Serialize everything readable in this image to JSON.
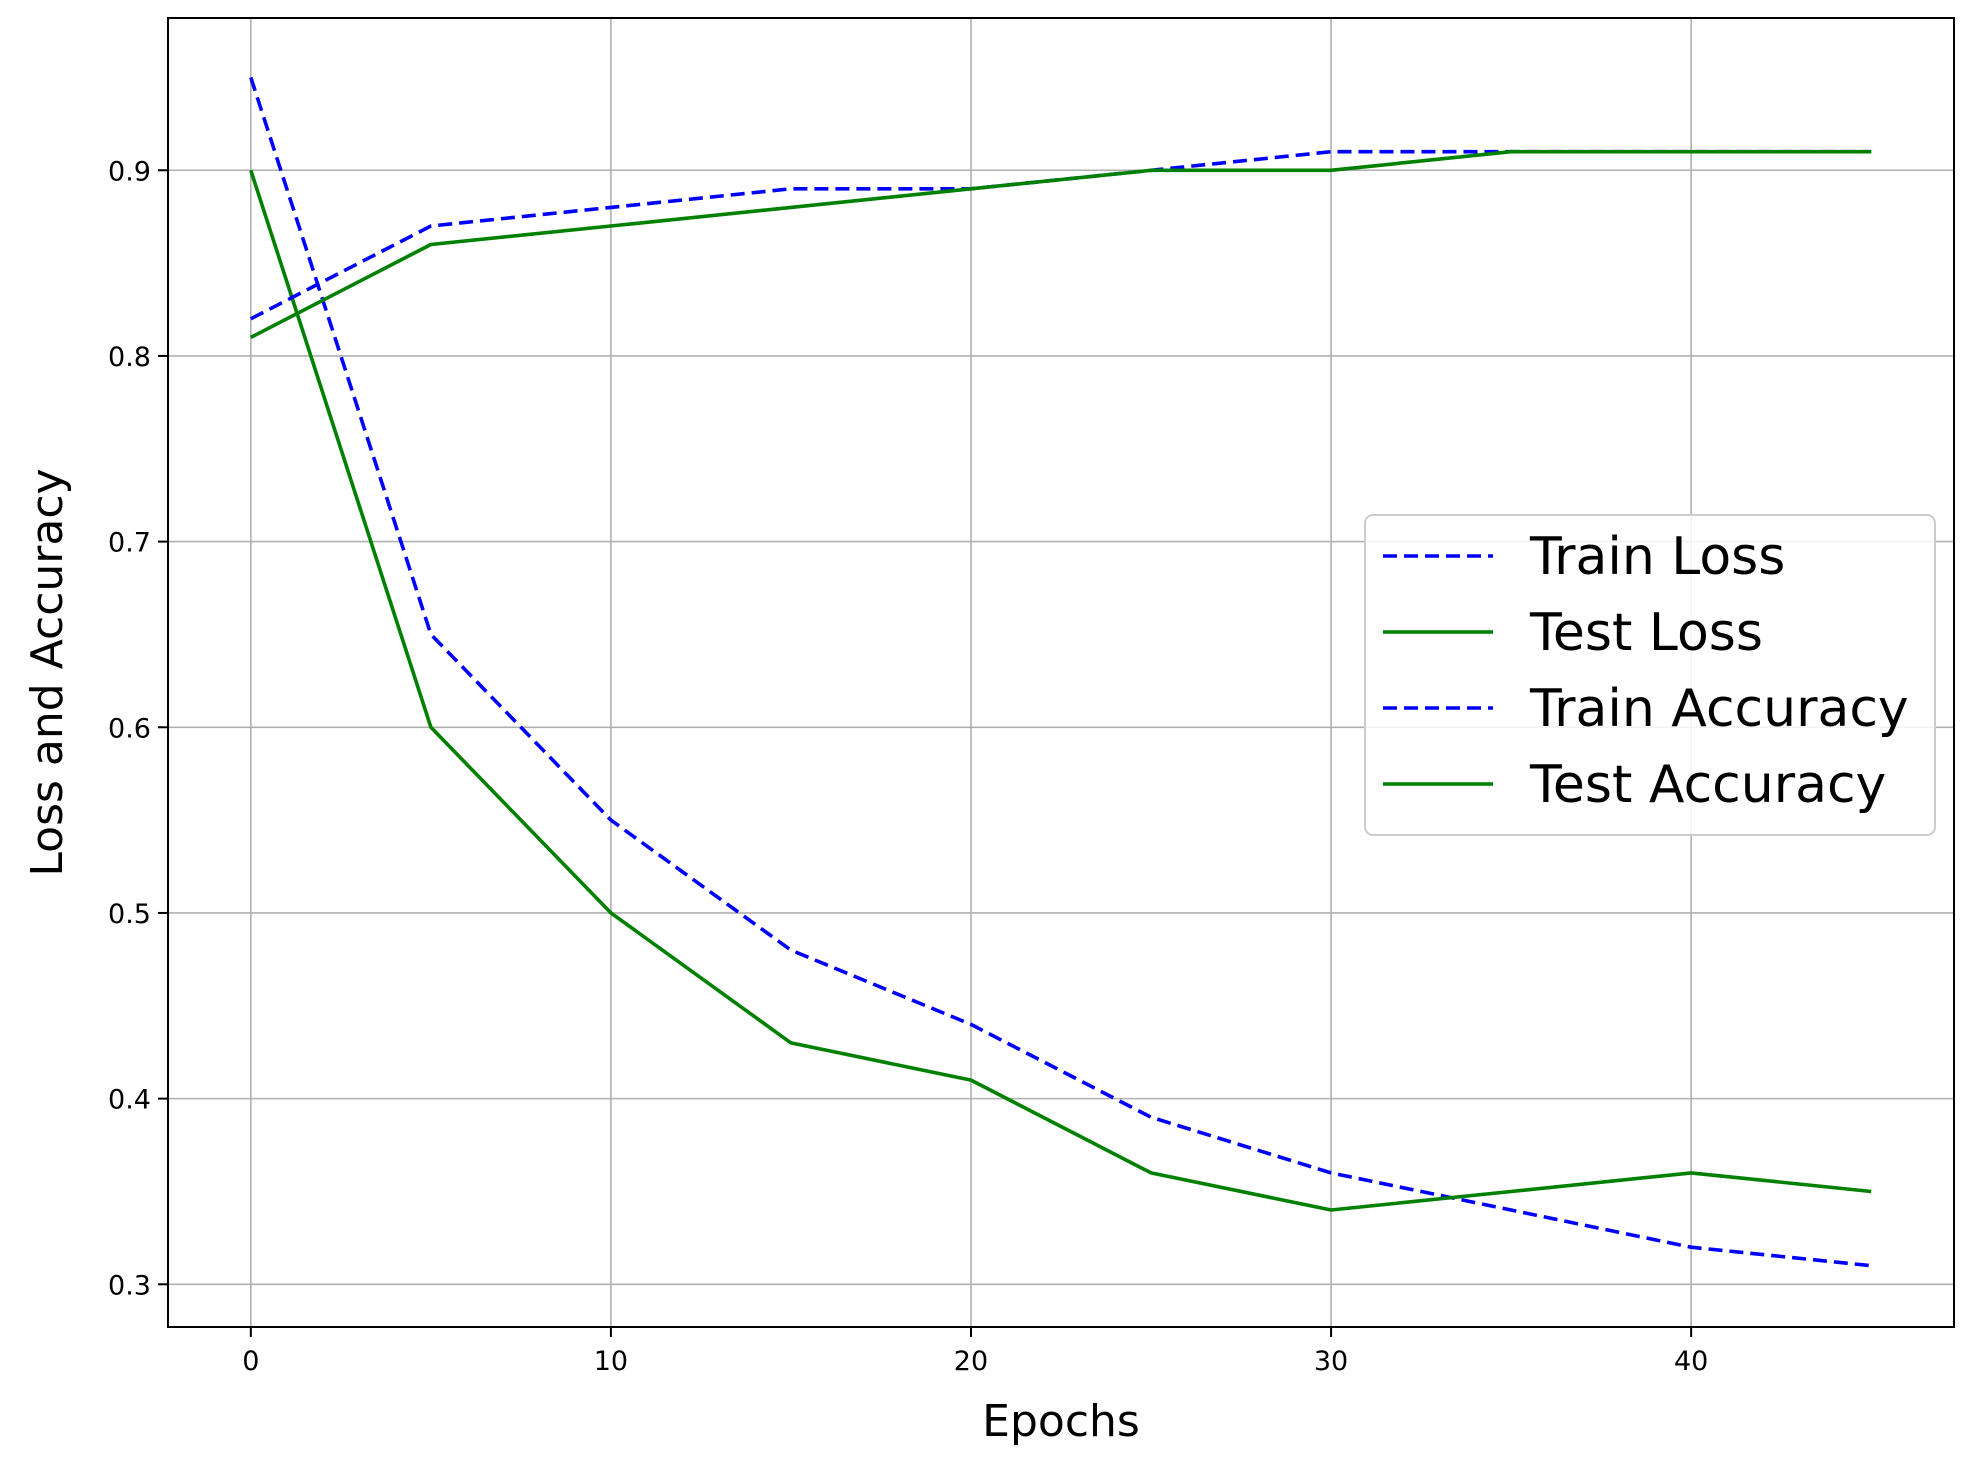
{
  "chart_data": {
    "type": "line",
    "xlabel": "Epochs",
    "ylabel": "Loss and Accuracy",
    "xlim": [
      -2.3,
      47.3
    ],
    "ylim": [
      0.277,
      0.982
    ],
    "xticks": [
      0,
      10,
      20,
      30,
      40
    ],
    "yticks": [
      0.3,
      0.4,
      0.5,
      0.6,
      0.7,
      0.8,
      0.9
    ],
    "xtick_labels": [
      "0",
      "10",
      "20",
      "30",
      "40"
    ],
    "ytick_labels": [
      "0.3",
      "0.4",
      "0.5",
      "0.6",
      "0.7",
      "0.8",
      "0.9"
    ],
    "grid": true,
    "legend_position": "center-right",
    "x": [
      0,
      5,
      10,
      15,
      20,
      25,
      30,
      35,
      40,
      45
    ],
    "series": [
      {
        "name": "Train Loss",
        "color": "#0000ff",
        "style": "dashed",
        "values": [
          0.95,
          0.65,
          0.55,
          0.48,
          0.44,
          0.39,
          0.36,
          0.34,
          0.32,
          0.31
        ]
      },
      {
        "name": "Test Loss",
        "color": "#008000",
        "style": "solid",
        "values": [
          0.9,
          0.6,
          0.5,
          0.43,
          0.41,
          0.36,
          0.34,
          0.35,
          0.36,
          0.35
        ]
      },
      {
        "name": "Train Accuracy",
        "color": "#0000ff",
        "style": "dashed",
        "values": [
          0.82,
          0.87,
          0.88,
          0.89,
          0.89,
          0.9,
          0.91,
          0.91,
          0.91,
          0.91
        ]
      },
      {
        "name": "Test Accuracy",
        "color": "#008000",
        "style": "solid",
        "values": [
          0.81,
          0.86,
          0.87,
          0.88,
          0.89,
          0.9,
          0.9,
          0.91,
          0.91,
          0.91
        ]
      }
    ]
  }
}
